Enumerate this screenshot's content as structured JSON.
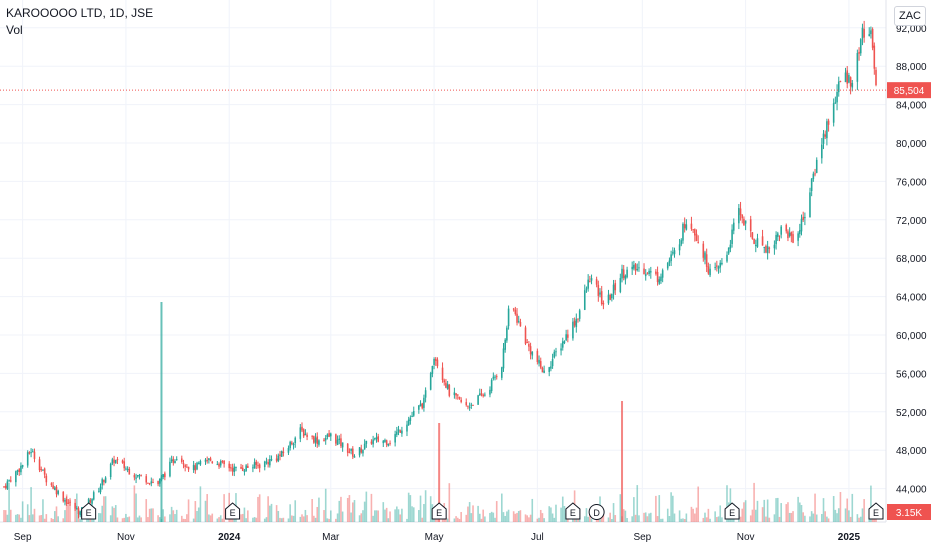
{
  "header": {
    "symbol": "KAROOOOO LTD, 1D, JSE",
    "volume_label": "Vol",
    "currency": "ZAC"
  },
  "colors": {
    "up": "#26a69a",
    "down": "#ef5350",
    "grid": "#f0f3fa",
    "axis_text": "#131722"
  },
  "chart_data": {
    "type": "candlestick",
    "title": "KAROOOOO LTD, 1D, JSE",
    "y_ticks": [
      "44,000",
      "48,000",
      "52,000",
      "56,000",
      "60,000",
      "64,000",
      "68,000",
      "72,000",
      "76,000",
      "80,000",
      "84,000",
      "88,000",
      "92,000"
    ],
    "ylim": [
      40000,
      92500
    ],
    "x_ticks": [
      "Sep",
      "Nov",
      "2024",
      "Mar",
      "May",
      "Jul",
      "Sep",
      "Nov",
      "2025"
    ],
    "x_tick_dates": [
      "2023-09-01",
      "2023-11-01",
      "2024-01-01",
      "2024-03-01",
      "2024-05-01",
      "2024-07-01",
      "2024-09-01",
      "2024-11-01",
      "2025-01-01"
    ],
    "date_range": [
      "2023-08-21",
      "2025-01-17"
    ],
    "last_price": 85504,
    "last_price_label": "85,504",
    "volume_last_label": "3.15K",
    "series": [
      {
        "date": "2023-08-21",
        "close": 44200
      },
      {
        "date": "2023-09-01",
        "close": 46500
      },
      {
        "date": "2023-09-06",
        "close": 48000
      },
      {
        "date": "2023-09-15",
        "close": 45000
      },
      {
        "date": "2023-09-25",
        "close": 43000
      },
      {
        "date": "2023-10-05",
        "close": 41500
      },
      {
        "date": "2023-10-16",
        "close": 44000
      },
      {
        "date": "2023-10-25",
        "close": 47000
      },
      {
        "date": "2023-11-06",
        "close": 45500
      },
      {
        "date": "2023-11-20",
        "close": 44500
      },
      {
        "date": "2023-12-01",
        "close": 47500
      },
      {
        "date": "2023-12-10",
        "close": 46000
      },
      {
        "date": "2023-12-20",
        "close": 47000
      },
      {
        "date": "2024-01-05",
        "close": 46000
      },
      {
        "date": "2024-01-20",
        "close": 46500
      },
      {
        "date": "2024-02-01",
        "close": 47500
      },
      {
        "date": "2024-02-12",
        "close": 50000
      },
      {
        "date": "2024-02-22",
        "close": 49000
      },
      {
        "date": "2024-03-01",
        "close": 49500
      },
      {
        "date": "2024-03-15",
        "close": 47500
      },
      {
        "date": "2024-03-25",
        "close": 49000
      },
      {
        "date": "2024-04-05",
        "close": 49000
      },
      {
        "date": "2024-04-15",
        "close": 51000
      },
      {
        "date": "2024-04-25",
        "close": 53000
      },
      {
        "date": "2024-05-01",
        "close": 58000
      },
      {
        "date": "2024-05-10",
        "close": 54000
      },
      {
        "date": "2024-05-20",
        "close": 52500
      },
      {
        "date": "2024-06-01",
        "close": 54000
      },
      {
        "date": "2024-06-10",
        "close": 57000
      },
      {
        "date": "2024-06-15",
        "close": 63500
      },
      {
        "date": "2024-06-25",
        "close": 59000
      },
      {
        "date": "2024-07-05",
        "close": 56000
      },
      {
        "date": "2024-07-15",
        "close": 59000
      },
      {
        "date": "2024-07-25",
        "close": 62000
      },
      {
        "date": "2024-08-01",
        "close": 66000
      },
      {
        "date": "2024-08-10",
        "close": 63000
      },
      {
        "date": "2024-08-20",
        "close": 66500
      },
      {
        "date": "2024-09-01",
        "close": 67000
      },
      {
        "date": "2024-09-10",
        "close": 66000
      },
      {
        "date": "2024-09-20",
        "close": 68500
      },
      {
        "date": "2024-09-28",
        "close": 72500
      },
      {
        "date": "2024-10-05",
        "close": 69500
      },
      {
        "date": "2024-10-12",
        "close": 66000
      },
      {
        "date": "2024-10-20",
        "close": 68000
      },
      {
        "date": "2024-10-28",
        "close": 73000
      },
      {
        "date": "2024-11-05",
        "close": 70000
      },
      {
        "date": "2024-11-15",
        "close": 69000
      },
      {
        "date": "2024-11-22",
        "close": 71000
      },
      {
        "date": "2024-12-01",
        "close": 70000
      },
      {
        "date": "2024-12-08",
        "close": 74000
      },
      {
        "date": "2024-12-14",
        "close": 79000
      },
      {
        "date": "2024-12-21",
        "close": 83000
      },
      {
        "date": "2024-12-28",
        "close": 87000
      },
      {
        "date": "2025-01-04",
        "close": 86500
      },
      {
        "date": "2025-01-08",
        "close": 91000
      },
      {
        "date": "2025-01-12",
        "close": 92000
      },
      {
        "date": "2025-01-15",
        "close": 90500
      },
      {
        "date": "2025-01-17",
        "close": 85504
      }
    ],
    "volume_spikes": [
      {
        "date": "2023-11-22",
        "relative": 1.0
      },
      {
        "date": "2024-05-04",
        "relative": 0.45
      },
      {
        "date": "2024-08-20",
        "relative": 0.55
      }
    ],
    "event_markers": [
      {
        "date": "2023-10-10",
        "label": "E"
      },
      {
        "date": "2024-01-03",
        "label": "E"
      },
      {
        "date": "2024-05-04",
        "label": "E"
      },
      {
        "date": "2024-07-22",
        "label": "E"
      },
      {
        "date": "2024-08-05",
        "label": "D"
      },
      {
        "date": "2024-10-24",
        "label": "E"
      },
      {
        "date": "2025-01-17",
        "label": "E"
      }
    ]
  }
}
